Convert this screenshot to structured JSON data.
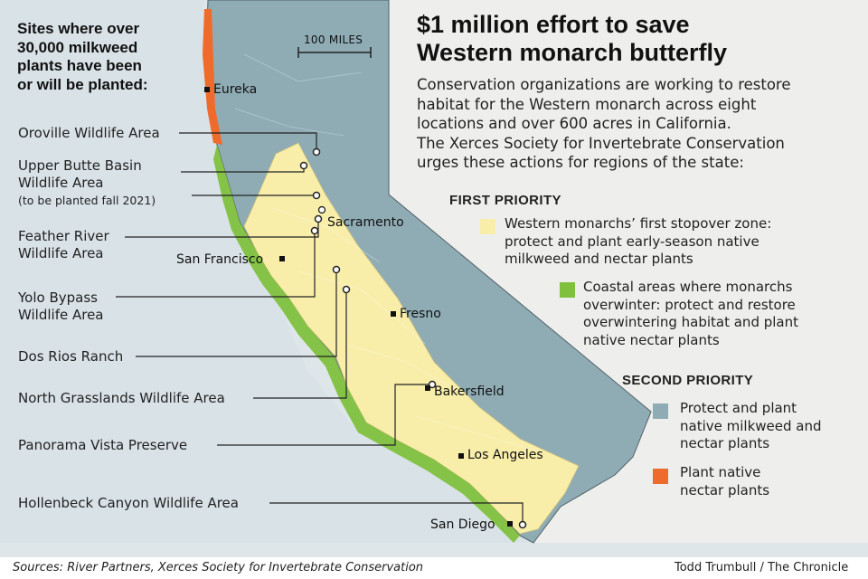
{
  "headline": "$1 million effort to save Western monarch butterfly",
  "headline_line1": "$1 million effort to save",
  "headline_line2": "Western monarch butterfly",
  "intro": "Conservation organizations are working to restore habitat for the Western monarch across eight locations and over 600 acres in California. The Xerces Society for Invertebrate Conservation urges these actions for regions of the state:",
  "intro_lines": [
    "Conservation organizations are working to restore",
    "habitat for the Western monarch across eight",
    "locations and over 600 acres in California.",
    "The Xerces Society for Invertebrate Conservation",
    "urges these actions for regions of the state:"
  ],
  "sites_heading_lines": [
    "Sites where over",
    "30,000 milkweed",
    "plants have been",
    "or will be planted:"
  ],
  "sites": [
    {
      "name": "Oroville Wildlife Area",
      "note": ""
    },
    {
      "name": "Upper Butte Basin Wildlife Area",
      "name_lines": [
        "Upper Butte Basin",
        "Wildlife Area"
      ],
      "note": "(to be planted fall 2021)"
    },
    {
      "name": "Feather River Wildlife Area",
      "name_lines": [
        "Feather River",
        "Wildlife Area"
      ],
      "note": ""
    },
    {
      "name": "Yolo Bypass Wildlife Area",
      "name_lines": [
        "Yolo Bypass",
        "Wildlife Area"
      ],
      "note": ""
    },
    {
      "name": "Dos Rios Ranch",
      "note": ""
    },
    {
      "name": "North Grasslands Wildlife Area",
      "note": ""
    },
    {
      "name": "Panorama Vista Preserve",
      "note": ""
    },
    {
      "name": "Hollenbeck Canyon Wildlife Area",
      "note": ""
    }
  ],
  "cities": [
    "Eureka",
    "Sacramento",
    "San Francisco",
    "Fresno",
    "Bakersfield",
    "Los Angeles",
    "San Diego"
  ],
  "scale_label": "100 MILES",
  "legend": {
    "first_priority": "FIRST PRIORITY",
    "second_priority": "SECOND PRIORITY",
    "items": [
      {
        "color": "#f8eeaa",
        "lines": [
          "Western monarchs’ first stopover zone:",
          "protect and plant early-season native",
          "milkweed and nectar plants"
        ]
      },
      {
        "color": "#7fc13f",
        "lines": [
          "Coastal areas where monarchs",
          "overwinter: protect and restore",
          "overwintering habitat and plant",
          "native nectar plants"
        ]
      },
      {
        "color": "#8facb5",
        "lines": [
          "Protect and plant",
          "native milkweed and",
          "nectar plants"
        ]
      },
      {
        "color": "#ef6b2c",
        "lines": [
          "Plant native",
          "nectar plants"
        ]
      }
    ]
  },
  "sources": "Sources: River Partners, Xerces Society for Invertebrate Conservation",
  "credit": "Todd Trumbull / The Chronicle"
}
